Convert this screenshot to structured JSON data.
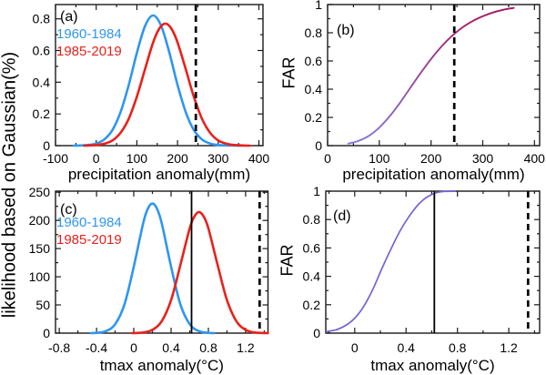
{
  "figure": {
    "background": "#ffffff",
    "shared_ylabel": "likelihood based on Gaussian(%)",
    "axis_color": "#1a1a1a",
    "text_color": "#000000",
    "vline_color": "#000000",
    "colors": {
      "period_1960_1984": "#2E96F0",
      "period_1985_2019": "#E8211C",
      "far_gradient_top": "#A8115C",
      "far_gradient_bottom": "#8678DD",
      "far_tmax_curve": "#7464D4"
    }
  },
  "chart_data": [
    {
      "id": "a",
      "panel_label": "(a)",
      "type": "line",
      "xlabel": "precipitation anomaly(mm)",
      "ylabel": "likelihood based on Gaussian(%)",
      "xlim": [
        -100,
        410
      ],
      "ylim": [
        0,
        0.89
      ],
      "xticks": [
        -100,
        0,
        100,
        200,
        300,
        400
      ],
      "xtick_labels": [
        "-100",
        "0",
        "100",
        "200",
        "300",
        "400"
      ],
      "yticks": [
        0,
        0.2,
        0.4,
        0.6,
        0.8
      ],
      "ytick_labels": [
        "0",
        "0.2",
        "0.4",
        "0.6",
        "0.8"
      ],
      "legend": [
        {
          "label": "1960-1984",
          "color": "#2E96F0"
        },
        {
          "label": "1985-2019",
          "color": "#E8211C"
        }
      ],
      "series": [
        {
          "name": "1960-1984",
          "color": "#2E96F0",
          "width": 2.6,
          "points": [
            [
              -55,
              0
            ],
            [
              -40,
              0.001
            ],
            [
              -20,
              0.004
            ],
            [
              0,
              0.013
            ],
            [
              20,
              0.039
            ],
            [
              40,
              0.099
            ],
            [
              60,
              0.212
            ],
            [
              80,
              0.383
            ],
            [
              100,
              0.585
            ],
            [
              120,
              0.754
            ],
            [
              140,
              0.821
            ],
            [
              160,
              0.754
            ],
            [
              180,
              0.585
            ],
            [
              200,
              0.383
            ],
            [
              220,
              0.212
            ],
            [
              240,
              0.099
            ],
            [
              260,
              0.039
            ],
            [
              280,
              0.013
            ],
            [
              300,
              0.004
            ],
            [
              320,
              0.001
            ],
            [
              340,
              0.001
            ],
            [
              360,
              0
            ]
          ]
        },
        {
          "name": "1985-2019",
          "color": "#E8211C",
          "width": 2.6,
          "points": [
            [
              -30,
              0
            ],
            [
              0,
              0.004
            ],
            [
              20,
              0.012
            ],
            [
              40,
              0.033
            ],
            [
              60,
              0.081
            ],
            [
              80,
              0.17
            ],
            [
              100,
              0.309
            ],
            [
              120,
              0.483
            ],
            [
              140,
              0.651
            ],
            [
              155,
              0.738
            ],
            [
              170,
              0.77
            ],
            [
              185,
              0.738
            ],
            [
              200,
              0.651
            ],
            [
              220,
              0.483
            ],
            [
              240,
              0.309
            ],
            [
              260,
              0.17
            ],
            [
              280,
              0.081
            ],
            [
              300,
              0.033
            ],
            [
              320,
              0.012
            ],
            [
              340,
              0.004
            ],
            [
              360,
              0.001
            ],
            [
              378,
              0
            ]
          ]
        }
      ],
      "vlines": [
        {
          "x": 245,
          "style": "dashed"
        }
      ]
    },
    {
      "id": "b",
      "panel_label": "(b)",
      "type": "line",
      "xlabel": "precipitation anomaly(mm)",
      "ylabel": "FAR",
      "xlim": [
        0,
        410
      ],
      "ylim": [
        0,
        1
      ],
      "xticks": [
        0,
        100,
        200,
        300,
        400
      ],
      "xtick_labels": [
        "0",
        "100",
        "200",
        "300",
        "400"
      ],
      "yticks": [
        0,
        0.2,
        0.4,
        0.6,
        0.8,
        1
      ],
      "ytick_labels": [
        "0",
        "0.2",
        "0.4",
        "0.6",
        "0.8",
        "1"
      ],
      "legend": [],
      "series": [
        {
          "name": "FAR",
          "gradient_top": "#A8115C",
          "gradient_bottom": "#8678DD",
          "width": 1.9,
          "points": [
            [
              40,
              0.014
            ],
            [
              60,
              0.034
            ],
            [
              80,
              0.07
            ],
            [
              100,
              0.128
            ],
            [
              120,
              0.208
            ],
            [
              140,
              0.304
            ],
            [
              160,
              0.41
            ],
            [
              180,
              0.515
            ],
            [
              200,
              0.614
            ],
            [
              220,
              0.702
            ],
            [
              240,
              0.776
            ],
            [
              260,
              0.836
            ],
            [
              280,
              0.882
            ],
            [
              300,
              0.917
            ],
            [
              320,
              0.944
            ],
            [
              340,
              0.963
            ],
            [
              360,
              0.976
            ]
          ]
        }
      ],
      "vlines": [
        {
          "x": 245,
          "style": "dashed"
        }
      ]
    },
    {
      "id": "c",
      "panel_label": "(c)",
      "type": "line",
      "xlabel": "tmax anomaly(°C)",
      "ylabel": "likelihood based on Gaussian(%)",
      "xlim": [
        -0.84,
        1.44
      ],
      "ylim": [
        0,
        252
      ],
      "xticks": [
        -0.8,
        -0.4,
        0,
        0.4,
        0.8,
        1.2
      ],
      "xtick_labels": [
        "-0.8",
        "-0.4",
        "0",
        "0.4",
        "0.8",
        "1.2"
      ],
      "yticks": [
        0,
        50,
        100,
        150,
        200,
        250
      ],
      "ytick_labels": [
        "0",
        "50",
        "100",
        "150",
        "200",
        "250"
      ],
      "legend": [
        {
          "label": "1960-1984",
          "color": "#2E96F0"
        },
        {
          "label": "1985-2019",
          "color": "#E8211C"
        }
      ],
      "series": [
        {
          "name": "1960-1984",
          "color": "#2E96F0",
          "width": 2.6,
          "points": [
            [
              -0.46,
              0
            ],
            [
              -0.4,
              0.6
            ],
            [
              -0.3,
              3.5
            ],
            [
              -0.2,
              15.9
            ],
            [
              -0.1,
              51.2
            ],
            [
              0,
              118
            ],
            [
              0.1,
              194.7
            ],
            [
              0.15,
              220.6
            ],
            [
              0.2,
              230
            ],
            [
              0.25,
              220.6
            ],
            [
              0.3,
              194.7
            ],
            [
              0.4,
              118
            ],
            [
              0.5,
              51.2
            ],
            [
              0.6,
              15.9
            ],
            [
              0.7,
              3.5
            ],
            [
              0.8,
              0.6
            ],
            [
              0.86,
              0
            ]
          ]
        },
        {
          "name": "1985-2019",
          "color": "#E8211C",
          "width": 2.6,
          "points": [
            [
              -0.02,
              0
            ],
            [
              0.1,
              1.2
            ],
            [
              0.2,
              5.8
            ],
            [
              0.3,
              21.3
            ],
            [
              0.4,
              58.6
            ],
            [
              0.5,
              120.7
            ],
            [
              0.6,
              186.1
            ],
            [
              0.65,
              207
            ],
            [
              0.7,
              215
            ],
            [
              0.75,
              207
            ],
            [
              0.8,
              186.1
            ],
            [
              0.9,
              120.7
            ],
            [
              1,
              58.6
            ],
            [
              1.1,
              21.3
            ],
            [
              1.2,
              5.8
            ],
            [
              1.3,
              1.2
            ],
            [
              1.44,
              0
            ]
          ]
        }
      ],
      "vlines": [
        {
          "x": 0.62,
          "style": "solid"
        },
        {
          "x": 1.35,
          "style": "dashed"
        }
      ]
    },
    {
      "id": "d",
      "panel_label": "(d)",
      "type": "line",
      "xlabel": "tmax anomaly(°C)",
      "ylabel": "FAR",
      "xlim": [
        -0.225,
        1.44
      ],
      "ylim": [
        0,
        1
      ],
      "xticks": [
        0,
        0.4,
        0.8,
        1.2
      ],
      "xtick_labels": [
        "0",
        "0.4",
        "0.8",
        "1.2"
      ],
      "yticks": [
        0,
        0.2,
        0.4,
        0.6,
        0.8,
        1
      ],
      "ytick_labels": [
        "0",
        "0.2",
        "0.4",
        "0.6",
        "0.8",
        "1"
      ],
      "legend": [],
      "series": [
        {
          "name": "FAR",
          "color": "#7464D4",
          "width": 1.7,
          "points": [
            [
              -0.22,
              0.01
            ],
            [
              -0.15,
              0.022
            ],
            [
              -0.1,
              0.04
            ],
            [
              -0.05,
              0.066
            ],
            [
              0,
              0.105
            ],
            [
              0.05,
              0.16
            ],
            [
              0.1,
              0.235
            ],
            [
              0.15,
              0.325
            ],
            [
              0.2,
              0.43
            ],
            [
              0.25,
              0.53
            ],
            [
              0.3,
              0.625
            ],
            [
              0.35,
              0.715
            ],
            [
              0.4,
              0.79
            ],
            [
              0.45,
              0.855
            ],
            [
              0.5,
              0.91
            ],
            [
              0.55,
              0.95
            ],
            [
              0.6,
              0.976
            ],
            [
              0.65,
              0.992
            ],
            [
              0.7,
              0.998
            ],
            [
              0.78,
              1
            ]
          ]
        }
      ],
      "vlines": [
        {
          "x": 0.62,
          "style": "solid"
        },
        {
          "x": 1.35,
          "style": "dashed"
        }
      ]
    }
  ]
}
